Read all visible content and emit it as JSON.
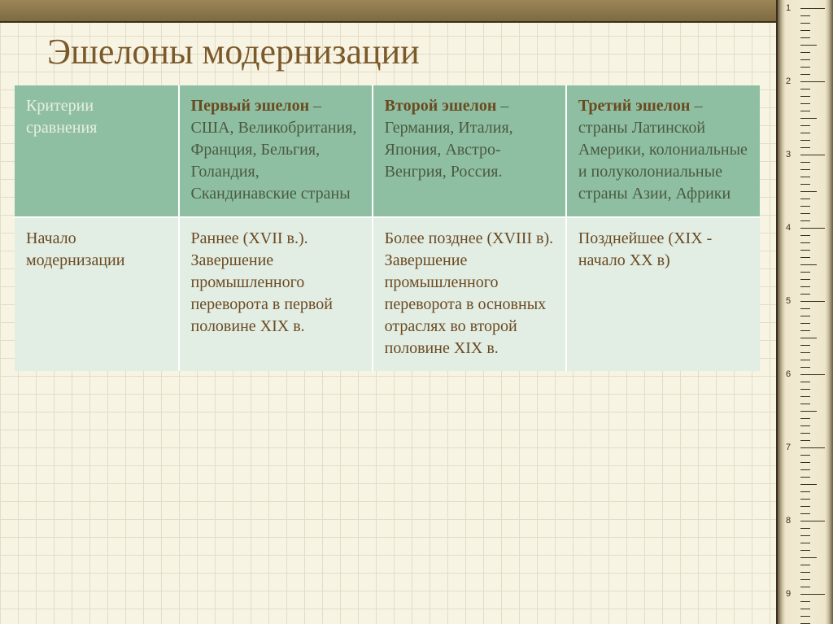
{
  "slide": {
    "title": "Эшелоны модернизации"
  },
  "table": {
    "columns": [
      {
        "title": "",
        "subtitle": "Критерии сравнения"
      },
      {
        "title": "Первый эшелон",
        "subtitle": " – США, Великобритания, Франция, Бельгия, Голандия, Скандинавские страны"
      },
      {
        "title": "Второй эшелон",
        "subtitle": " – Германия, Италия, Япония, Австро-Венгрия, Россия."
      },
      {
        "title": "Третий эшелон",
        "subtitle": " – страны Латинской Америки, колониальные и полуколониальные страны Азии, Африки"
      }
    ],
    "rows": [
      {
        "criteria": "Начало модернизации",
        "cells": [
          "Раннее (XVII в.). Завершение промышленного переворота в первой половине XIX в.",
          "Более позднее (XVIII в). Завершение промышленного переворота в основных отраслях во второй половине XIX в.",
          "Позднейшее (XIX - начало XX в)"
        ]
      }
    ]
  },
  "style": {
    "title_color": "#7a5a2a",
    "header_bg": "#8fbfa3",
    "header_text_muted": "#e7efe3",
    "header_bold_color": "#6a4a20",
    "body_bg": "#e2ede4",
    "body_text": "#6a4a20",
    "cell_border": "#ffffff",
    "page_bg": "#f8f4e4",
    "grid_line": "#e3ddc6",
    "title_fontsize": 44,
    "cell_fontsize": 20
  }
}
